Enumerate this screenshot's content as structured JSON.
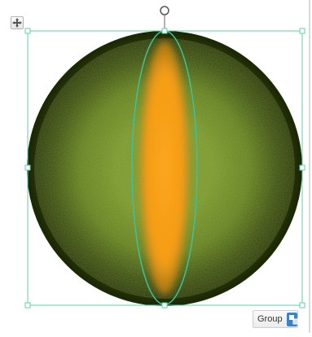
{
  "canvas": {
    "shapes": [
      {
        "name": "green-circle",
        "fill": "#4f6a18",
        "rim": "#1f2c06",
        "texture": "#8aa830"
      },
      {
        "name": "orange-pupil",
        "fill": "#f7a11a"
      }
    ],
    "selection_color": "#5fcfa8"
  },
  "icons": {
    "move": "move-arrows-icon",
    "rotate": "rotate-handle-icon",
    "group": "group-icon"
  },
  "group_button": {
    "label": "Group"
  }
}
